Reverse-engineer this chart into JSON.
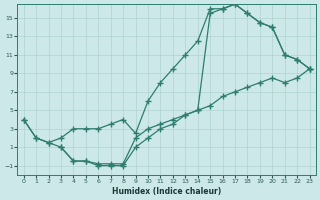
{
  "xlabel": "Humidex (Indice chaleur)",
  "bg_color": "#cce8e8",
  "line_color": "#2e7d6e",
  "grid_color": "#b0d4d0",
  "xlim": [
    -0.5,
    23.5
  ],
  "ylim": [
    -2,
    16.5
  ],
  "xticks": [
    0,
    1,
    2,
    3,
    4,
    5,
    6,
    7,
    8,
    9,
    10,
    11,
    12,
    13,
    14,
    15,
    16,
    17,
    18,
    19,
    20,
    21,
    22,
    23
  ],
  "yticks": [
    -1,
    1,
    3,
    5,
    7,
    9,
    11,
    13,
    15
  ],
  "line1_x": [
    0,
    1,
    2,
    3,
    4,
    5,
    6,
    7,
    8,
    9,
    10,
    11,
    12,
    13,
    14,
    15,
    16,
    17,
    18,
    19,
    20,
    21,
    22,
    23
  ],
  "line1_y": [
    4,
    2,
    1.5,
    1,
    -0.5,
    -0.5,
    -1,
    -1,
    -1,
    1,
    2,
    3,
    3.5,
    4.5,
    5,
    5.5,
    6.5,
    7,
    7.5,
    8,
    8.5,
    8,
    8.5,
    9.5
  ],
  "line2_x": [
    0,
    1,
    2,
    3,
    4,
    5,
    6,
    7,
    8,
    9,
    10,
    11,
    12,
    13,
    14,
    15,
    16,
    17,
    18,
    19,
    20,
    21,
    22,
    23
  ],
  "line2_y": [
    4,
    2,
    1.5,
    2,
    3,
    3,
    3,
    3.5,
    4,
    2.5,
    6,
    8,
    9.5,
    11,
    12.5,
    16,
    16,
    16.5,
    15.5,
    14.5,
    14,
    11,
    10.5,
    9.5
  ],
  "line3_x": [
    3,
    4,
    5,
    6,
    7,
    8,
    9,
    10,
    11,
    12,
    13,
    14,
    15,
    16,
    17,
    18,
    19,
    20,
    21,
    22,
    23
  ],
  "line3_y": [
    1,
    -0.5,
    -0.5,
    -0.8,
    -0.8,
    -0.8,
    2,
    3,
    3.5,
    4,
    4.5,
    5,
    15.5,
    16,
    16.5,
    15.5,
    14.5,
    14,
    11,
    10.5,
    9.5
  ]
}
